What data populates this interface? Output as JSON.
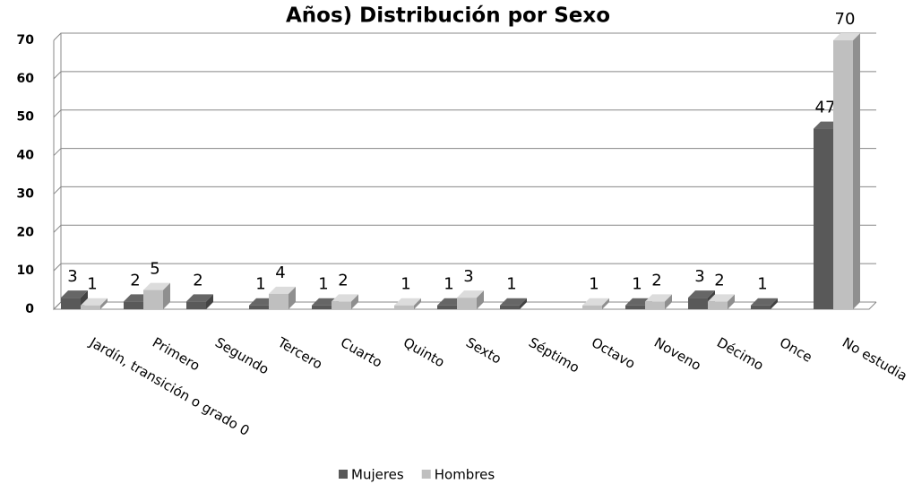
{
  "chart_data": {
    "type": "bar3d",
    "title": "Años) Distribución por Sexo",
    "categories": [
      "Jardín, transición o grado 0",
      "Primero",
      "Segundo",
      "Tercero",
      "Cuarto",
      "Quinto",
      "Sexto",
      "Séptimo",
      "Octavo",
      "Noveno",
      "Décimo",
      "Once",
      "No estudia"
    ],
    "series": [
      {
        "name": "Mujeres",
        "color": "#595959",
        "values": [
          3,
          2,
          2,
          1,
          1,
          null,
          1,
          1,
          null,
          1,
          3,
          1,
          47
        ]
      },
      {
        "name": "Hombres",
        "color": "#bfbfbf",
        "values": [
          1,
          5,
          null,
          4,
          2,
          1,
          3,
          null,
          1,
          2,
          2,
          null,
          70
        ]
      }
    ],
    "ylim": [
      0,
      70
    ],
    "yticks": [
      0,
      10,
      20,
      30,
      40,
      50,
      60,
      70
    ],
    "grid": true,
    "legend": "bottom"
  }
}
